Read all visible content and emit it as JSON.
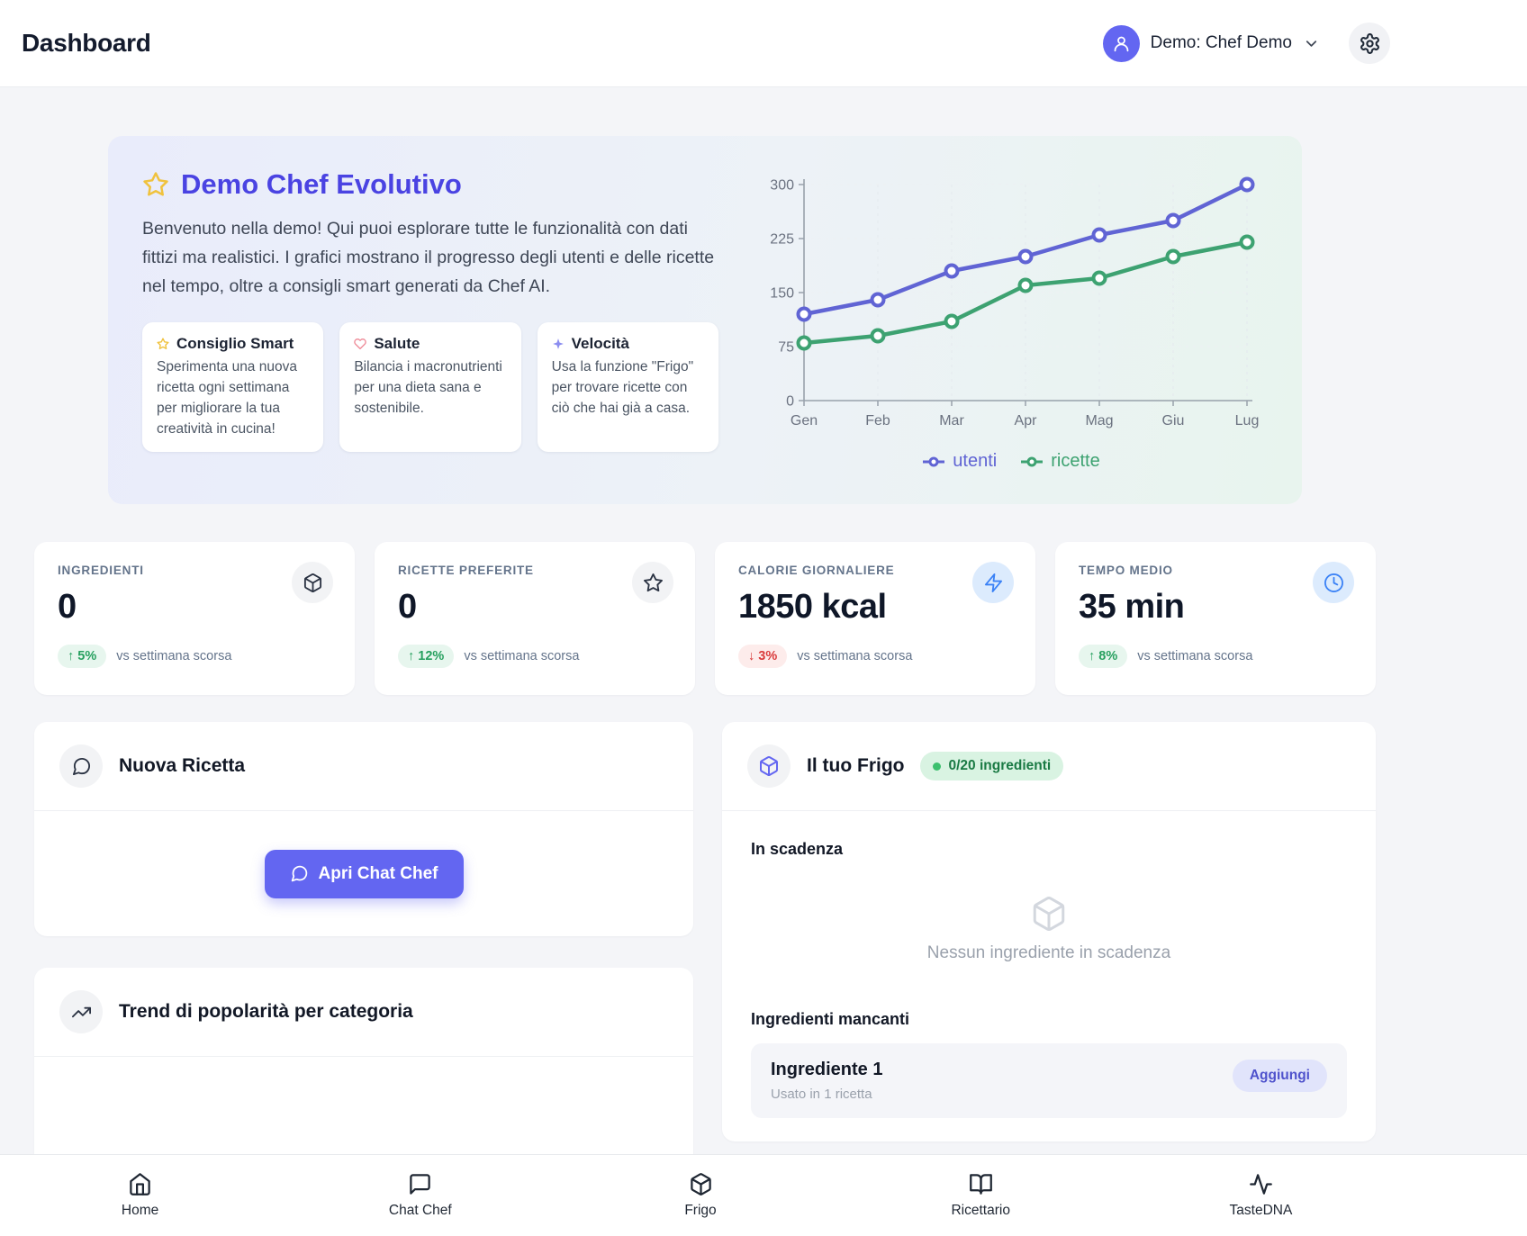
{
  "header": {
    "title": "Dashboard",
    "user_label": "Demo: Chef Demo"
  },
  "hero": {
    "title": "Demo Chef Evolutivo",
    "description": "Benvenuto nella demo! Qui puoi esplorare tutte le funzionalità con dati fittizi ma realistici. I grafici mostrano il progresso degli utenti e delle ricette nel tempo, oltre a consigli smart generati da Chef AI.",
    "tips": [
      {
        "icon": "star-icon",
        "title": "Consiglio Smart",
        "text": "Sperimenta una nuova ricetta ogni settimana per migliorare la tua creatività in cucina!"
      },
      {
        "icon": "heart-icon",
        "title": "Salute",
        "text": "Bilancia i macronutrienti per una dieta sana e sostenibile."
      },
      {
        "icon": "sparkle-icon",
        "title": "Velocità",
        "text": "Usa la funzione \"Frigo\" per trovare ricette con ciò che hai già a casa."
      }
    ]
  },
  "chart_data": {
    "type": "line",
    "x": [
      "Gen",
      "Feb",
      "Mar",
      "Apr",
      "Mag",
      "Giu",
      "Lug"
    ],
    "series": [
      {
        "name": "utenti",
        "color": "#6064d4",
        "values": [
          120,
          140,
          180,
          200,
          230,
          250,
          300
        ]
      },
      {
        "name": "ricette",
        "color": "#3da271",
        "values": [
          80,
          90,
          110,
          160,
          170,
          200,
          220
        ]
      }
    ],
    "ylim": [
      0,
      300
    ],
    "yticks": [
      0,
      75,
      150,
      225,
      300
    ],
    "grid": true,
    "legend_position": "bottom"
  },
  "stats": [
    {
      "label": "INGREDIENTI",
      "value": "0",
      "arrow": "↑",
      "delta": "5%",
      "note": "vs settimana scorsa"
    },
    {
      "label": "RICETTE PREFERITE",
      "value": "0",
      "arrow": "↑",
      "delta": "12%",
      "note": "vs settimana scorsa"
    },
    {
      "label": "CALORIE GIORNALIERE",
      "value": "1850 kcal",
      "arrow": "↓",
      "delta": "3%",
      "note": "vs settimana scorsa"
    },
    {
      "label": "TEMPO MEDIO",
      "value": "35 min",
      "arrow": "↑",
      "delta": "8%",
      "note": "vs settimana scorsa"
    }
  ],
  "chat_card": {
    "title": "Nuova Ricetta",
    "button_label": "Apri Chat Chef"
  },
  "trend_card": {
    "title": "Trend di popolarità per categoria"
  },
  "fridge": {
    "title": "Il tuo Frigo",
    "badge": "0/20 ingredienti",
    "expiring_title": "In scadenza",
    "expiring_empty": "Nessun ingrediente in scadenza",
    "missing_title": "Ingredienti mancanti",
    "missing_items": [
      {
        "name": "Ingrediente 1",
        "usage": "Usato in 1 ricetta",
        "action": "Aggiungi"
      }
    ]
  },
  "bottom_nav": [
    {
      "label": "Home"
    },
    {
      "label": "Chat Chef"
    },
    {
      "label": "Frigo"
    },
    {
      "label": "Ricettario"
    },
    {
      "label": "TasteDNA"
    }
  ],
  "colors": {
    "accent": "#6366f1",
    "hero_title": "#4a43e2",
    "positive": "#27a05f",
    "negative": "#d93a3a",
    "series_utenti": "#6064d4",
    "series_ricette": "#3da271",
    "star": "#f0c23e"
  }
}
